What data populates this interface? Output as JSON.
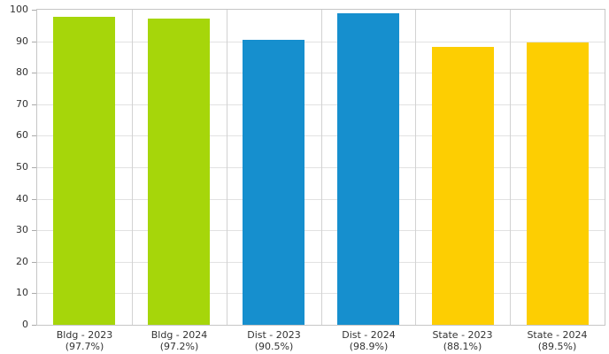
{
  "chart_data": {
    "type": "bar",
    "title": "",
    "xlabel": "",
    "ylabel": "",
    "categories": [
      "Bldg - 2023",
      "Bldg - 2024",
      "Dist - 2023",
      "Dist - 2024",
      "State - 2023",
      "State - 2024"
    ],
    "category_sublabels": [
      "(97.7%)",
      "(97.2%)",
      "(90.5%)",
      "(98.9%)",
      "(88.1%)",
      "(89.5%)"
    ],
    "values": [
      97.7,
      97.2,
      90.5,
      98.9,
      88.1,
      89.5
    ],
    "bar_colors": [
      "#a6d60a",
      "#a6d60a",
      "#168fce",
      "#168fce",
      "#fdce02",
      "#fdce02"
    ],
    "ylim": [
      0,
      100
    ],
    "yticks": [
      0,
      10,
      20,
      30,
      40,
      50,
      60,
      70,
      80,
      90,
      100
    ],
    "grid": {
      "horizontal": true,
      "vertical_category_separators": true
    },
    "legend": "none",
    "colors": {
      "bldg_series": "#a6d60a",
      "dist_series": "#168fce",
      "state_series": "#fdce02",
      "horizontal_gridline": "#e2e2e2",
      "vertical_gridline": "#d2d2d2",
      "plot_border": "#c6c6c6",
      "tick_mark": "#aaaaaa",
      "axis_text": "#333333",
      "background": "#ffffff"
    }
  }
}
